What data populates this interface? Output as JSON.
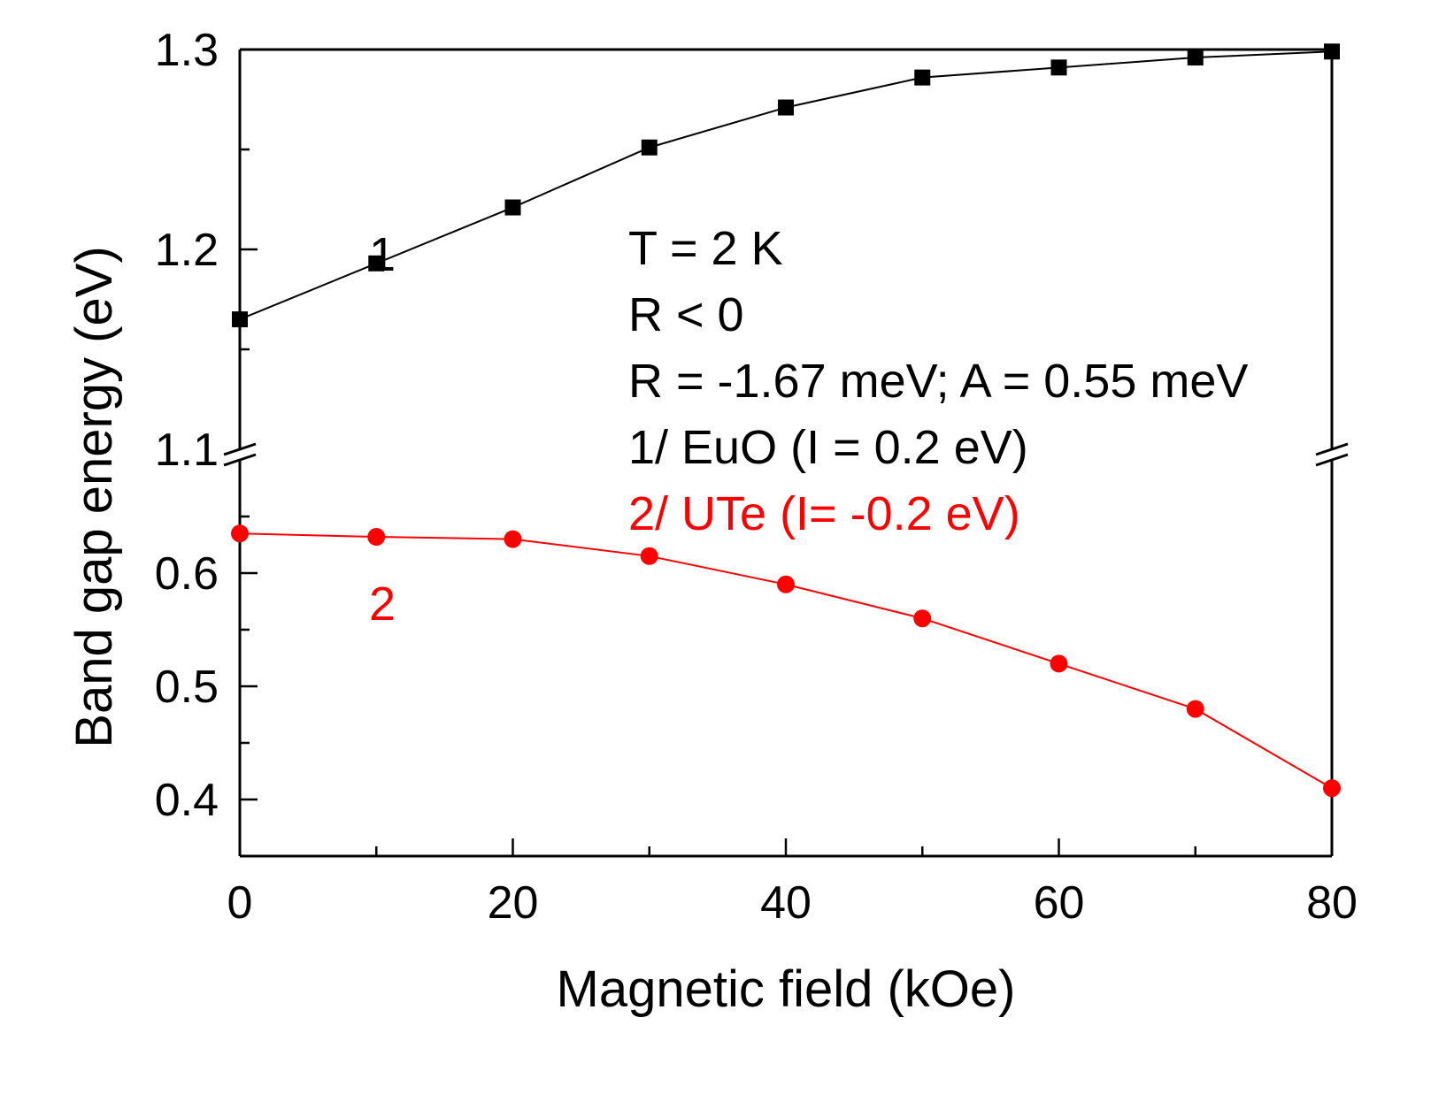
{
  "chart_data": {
    "type": "line",
    "title": "",
    "xlabel": "Magnetic field (kOe)",
    "ylabel": "Band gap energy (eV)",
    "xlim": [
      0,
      80
    ],
    "ylim_upper": [
      1.1,
      1.3
    ],
    "ylim_lower": [
      0.35,
      0.7
    ],
    "broken_y_axis": true,
    "grid": false,
    "x_ticks": [
      "0",
      "20",
      "40",
      "60",
      "80"
    ],
    "y_ticks_upper": [
      "1.1",
      "1.2",
      "1.3"
    ],
    "y_ticks_lower": [
      "0.4",
      "0.5",
      "0.6"
    ],
    "series": [
      {
        "name": "1",
        "marker": "square",
        "color": "#000000",
        "x": [
          0,
          10,
          20,
          30,
          40,
          50,
          60,
          70,
          80
        ],
        "values": [
          1.165,
          1.193,
          1.221,
          1.251,
          1.271,
          1.286,
          1.291,
          1.296,
          1.299
        ]
      },
      {
        "name": "2",
        "marker": "circle",
        "color": "#ff0000",
        "x": [
          0,
          10,
          20,
          30,
          40,
          50,
          60,
          70,
          80
        ],
        "values": [
          0.635,
          0.632,
          0.63,
          0.615,
          0.59,
          0.56,
          0.52,
          0.48,
          0.41
        ]
      }
    ],
    "annotations": [
      {
        "text": "T = 2 K",
        "color": "#000000"
      },
      {
        "text": "R < 0",
        "color": "#000000"
      },
      {
        "text": "R = -1.67 meV; A = 0.55 meV",
        "color": "#000000"
      },
      {
        "text": "1/ EuO (I = 0.2 eV)",
        "color": "#000000"
      },
      {
        "text": "2/ UTe  (I= -0.2 eV)",
        "color": "#ff0000"
      }
    ]
  }
}
